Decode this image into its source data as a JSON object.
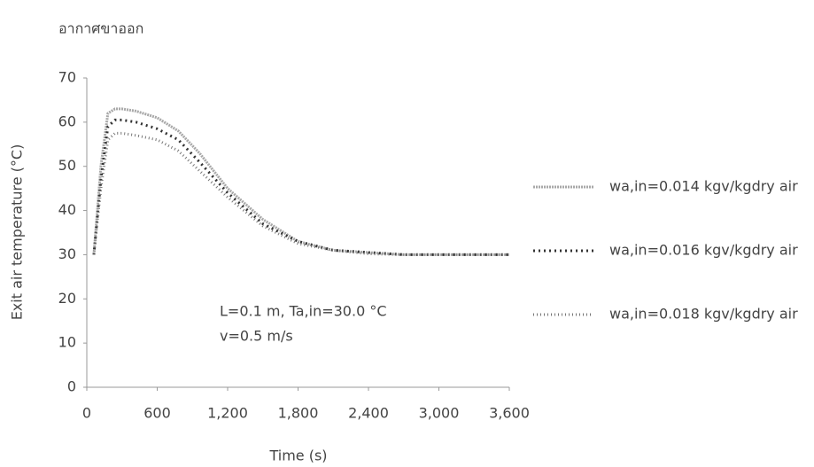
{
  "chart_data": {
    "type": "line",
    "title": "อากาศขาออก",
    "x_label": "Time (s)",
    "y_label": "Exit air temperature (°C)",
    "annotations": [
      "L=0.1 m, Ta,in=30.0 °C",
      "v=0.5 m/s"
    ],
    "x": [
      60,
      120,
      180,
      240,
      300,
      420,
      600,
      780,
      960,
      1200,
      1500,
      1800,
      2100,
      2400,
      2700,
      3000,
      3300,
      3600
    ],
    "series": [
      {
        "name": "wa,in=0.014  kgv/kgdry air",
        "color": "#a8a8a8",
        "values": [
          30,
          50,
          62,
          63,
          63,
          62.5,
          61,
          58,
          53,
          45,
          38,
          33,
          31,
          30.5,
          30,
          30,
          30,
          30
        ]
      },
      {
        "name": "wa,in=0.016  kgv/kgdry air",
        "color": "#333333",
        "values": [
          30,
          47,
          59,
          60.5,
          60.5,
          60,
          58.5,
          56,
          51,
          44,
          37,
          33,
          31,
          30.5,
          30,
          30,
          30,
          30
        ]
      },
      {
        "name": "wa,in=0.018  kgv/kgdry air",
        "color": "#777777",
        "values": [
          30,
          45,
          56,
          57.5,
          57.5,
          57,
          56,
          53.5,
          49,
          43,
          36.5,
          32.5,
          31,
          30.2,
          30,
          30,
          30,
          30
        ]
      }
    ],
    "xlim": [
      0,
      3600
    ],
    "xticks": [
      0,
      600,
      {
        "value": 1200,
        "label": "1,200"
      },
      {
        "value": 1800,
        "label": "1,800"
      },
      {
        "value": 2400,
        "label": "2,400"
      },
      {
        "value": 3000,
        "label": "3,000"
      },
      {
        "value": 3600,
        "label": "3,600"
      }
    ],
    "ylim": [
      0,
      70
    ],
    "yticks": [
      0,
      10,
      20,
      30,
      40,
      50,
      60,
      70
    ],
    "legend": "right"
  }
}
